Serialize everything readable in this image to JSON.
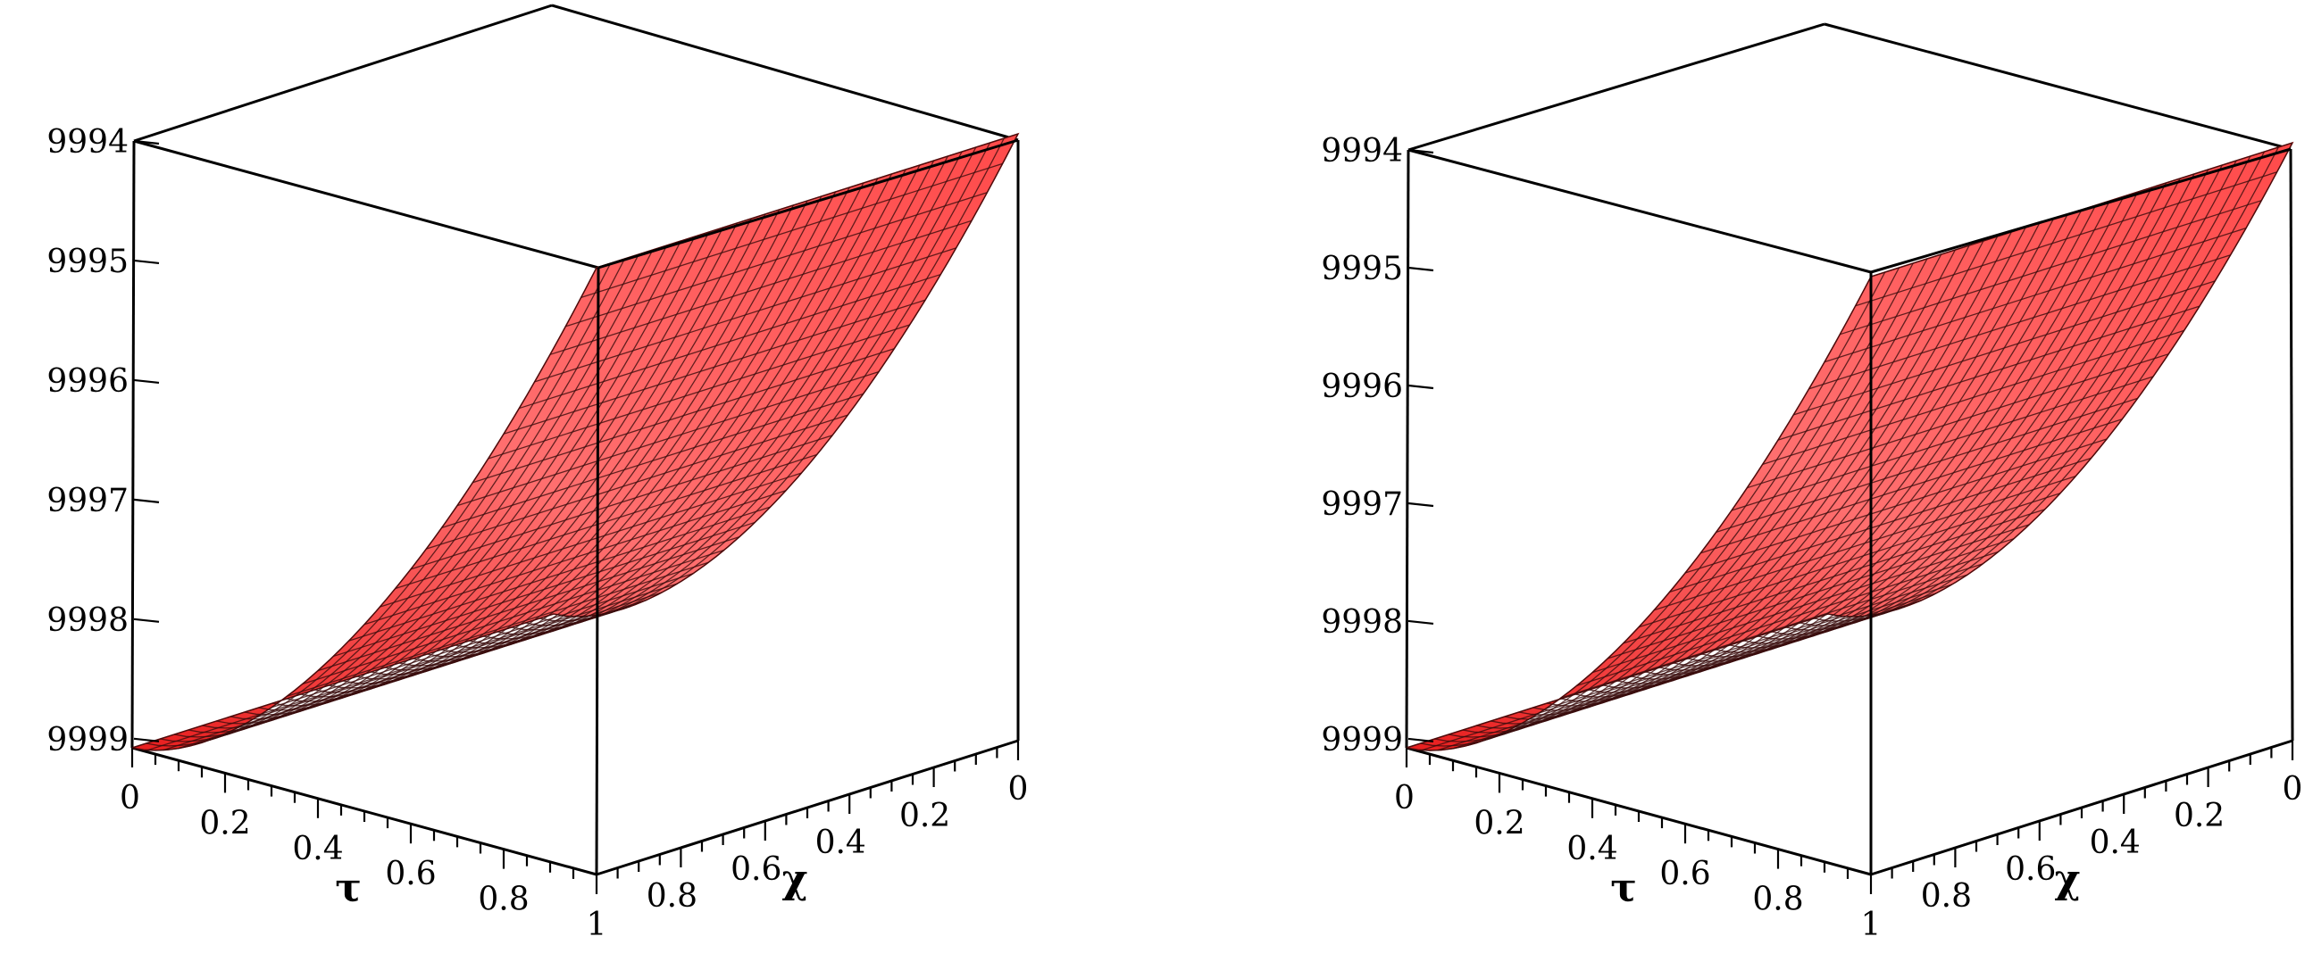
{
  "chart_data": [
    {
      "type": "surface3d",
      "title": "",
      "xlabel": "τ",
      "ylabel": "χ",
      "zlabel": "",
      "x_ticks": [
        "0",
        "0.2",
        "0.4",
        "0.6",
        "0.8",
        "1"
      ],
      "y_ticks": [
        "0",
        "0.2",
        "0.4",
        "0.6",
        "0.8"
      ],
      "z_ticks": [
        "9994",
        "9995",
        "9996",
        "9997",
        "9998",
        "9999"
      ],
      "x_range": [
        0,
        1
      ],
      "y_range": [
        0,
        1
      ],
      "z_range": [
        0.9993,
        0.9999
      ],
      "surface_color": "#ff2a2a",
      "grid_lines": 30,
      "surface_samples": {
        "x": [
          0,
          0.25,
          0.5,
          0.75,
          1
        ],
        "z": [
          0.9999,
          0.99985,
          0.9997,
          0.99955,
          0.9993
        ]
      }
    },
    {
      "type": "surface3d",
      "title": "",
      "xlabel": "τ",
      "ylabel": "χ",
      "zlabel": "",
      "x_ticks": [
        "0",
        "0.2",
        "0.4",
        "0.6",
        "0.8",
        "1"
      ],
      "y_ticks": [
        "0",
        "0.2",
        "0.4",
        "0.6",
        "0.8"
      ],
      "z_ticks": [
        "9994",
        "9995",
        "9996",
        "9997",
        "9998",
        "9999"
      ],
      "x_range": [
        0,
        1
      ],
      "y_range": [
        0,
        1
      ],
      "z_range": [
        0.9993,
        0.9999
      ],
      "surface_color": "#ff2a2a",
      "grid_lines": 30,
      "surface_samples": {
        "x": [
          0,
          0.25,
          0.5,
          0.75,
          1
        ],
        "z": [
          0.9999,
          0.99985,
          0.9997,
          0.99955,
          0.9993
        ]
      }
    }
  ]
}
